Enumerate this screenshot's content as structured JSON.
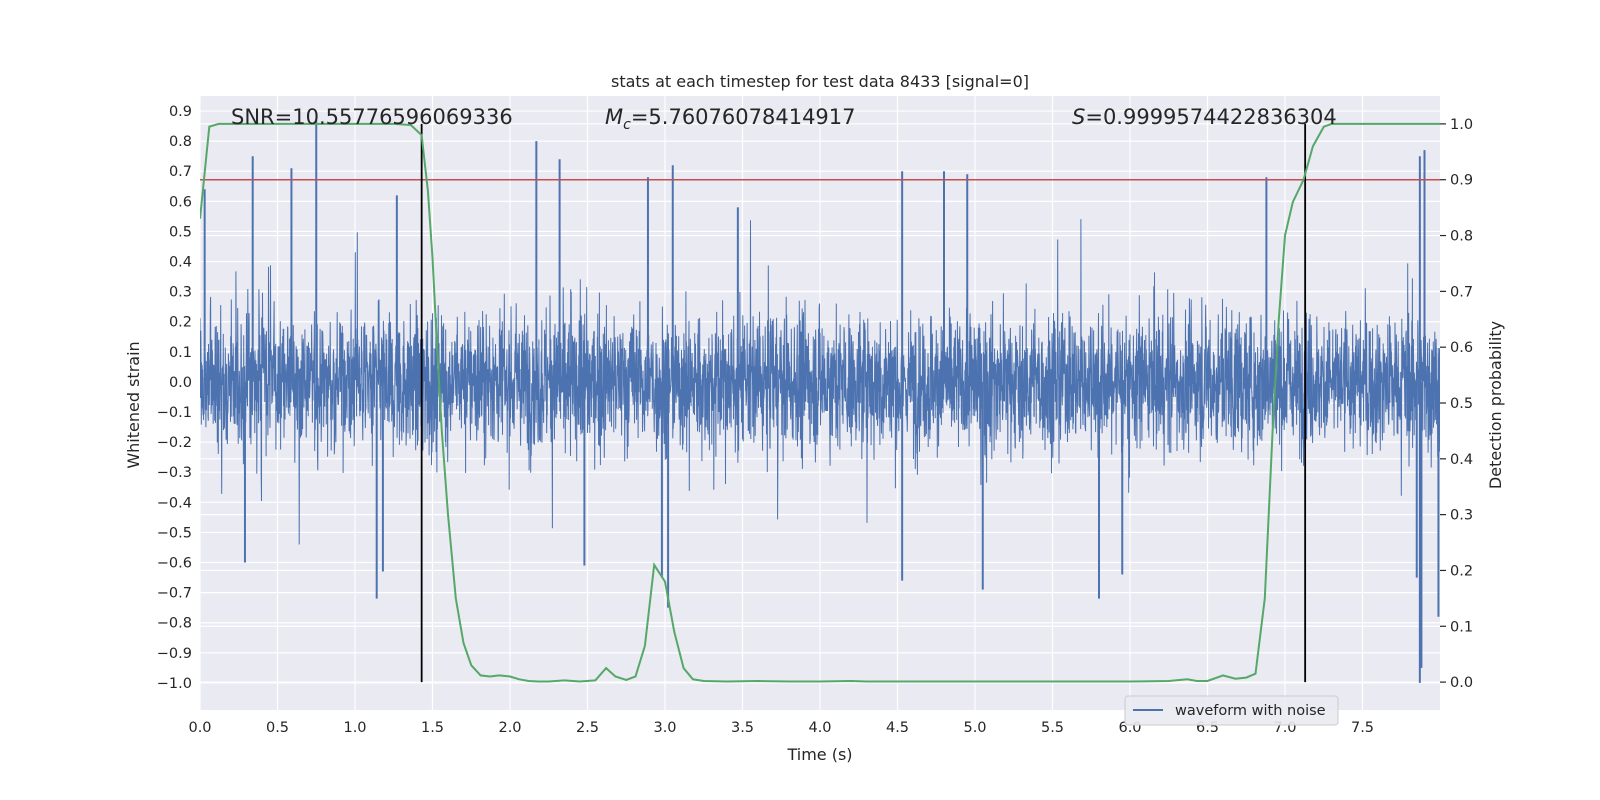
{
  "chart_data": {
    "type": "line",
    "title": "stats at each timestep for test data 8433 [signal=0]",
    "xlabel": "Time (s)",
    "ylabel": "Whitened strain",
    "y2label": "Detection probability",
    "xlim": [
      0.0,
      8.0
    ],
    "ylim": [
      -1.09,
      0.95
    ],
    "y2lim": [
      -0.05,
      1.05
    ],
    "xticks": [
      0.0,
      0.5,
      1.0,
      1.5,
      2.0,
      2.5,
      3.0,
      3.5,
      4.0,
      4.5,
      5.0,
      5.5,
      6.0,
      6.5,
      7.0,
      7.5
    ],
    "yticks": [
      0.9,
      0.8,
      0.7,
      0.6,
      0.5,
      0.4,
      0.3,
      0.2,
      0.1,
      0.0,
      -0.1,
      -0.2,
      -0.3,
      -0.4,
      -0.5,
      -0.6,
      -0.7,
      -0.8,
      -0.9,
      -1.0
    ],
    "y2ticks": [
      1.0,
      0.9,
      0.8,
      0.7,
      0.6,
      0.5,
      0.4,
      0.3,
      0.2,
      0.1,
      0.0
    ],
    "grid": true,
    "legend": {
      "placement": "lower-right",
      "entries": [
        "waveform with noise"
      ]
    },
    "annotations": {
      "snr": "SNR=10.55776596069336",
      "mc_symbol": "M",
      "mc_sub": "c",
      "mc_value": "=5.76076078414917",
      "s_symbol": "S",
      "s_value": "=0.9999574422836304"
    },
    "threshold_line": {
      "axis": "y2",
      "value": 0.9,
      "color": "#c44e52"
    },
    "vertical_lines": {
      "x": [
        1.43,
        7.13
      ],
      "color": "#000000"
    },
    "waveform": {
      "name": "waveform with noise",
      "color": "#4c72b0",
      "x_range": [
        0.0,
        8.0
      ],
      "sample_rate": 2048,
      "typical_envelope": [
        -0.42,
        0.45
      ],
      "spikes": [
        {
          "x": 0.03,
          "y": 0.64
        },
        {
          "x": 0.75,
          "y": 0.87
        },
        {
          "x": 0.34,
          "y": 0.75
        },
        {
          "x": 0.59,
          "y": 0.71
        },
        {
          "x": 2.17,
          "y": 0.8
        },
        {
          "x": 2.32,
          "y": 0.74
        },
        {
          "x": 2.89,
          "y": 0.68
        },
        {
          "x": 3.05,
          "y": 0.72
        },
        {
          "x": 4.53,
          "y": 0.7
        },
        {
          "x": 4.8,
          "y": 0.7
        },
        {
          "x": 4.95,
          "y": 0.69
        },
        {
          "x": 6.88,
          "y": 0.68
        },
        {
          "x": 7.9,
          "y": 0.77
        },
        {
          "x": 7.87,
          "y": 0.75
        },
        {
          "x": 3.47,
          "y": 0.58
        },
        {
          "x": 1.27,
          "y": 0.62
        },
        {
          "x": 1.14,
          "y": -0.72
        },
        {
          "x": 1.18,
          "y": -0.63
        },
        {
          "x": 3.02,
          "y": -0.75
        },
        {
          "x": 2.98,
          "y": -0.65
        },
        {
          "x": 4.53,
          "y": -0.66
        },
        {
          "x": 5.05,
          "y": -0.69
        },
        {
          "x": 5.8,
          "y": -0.72
        },
        {
          "x": 5.95,
          "y": -0.64
        },
        {
          "x": 7.87,
          "y": -1.0
        },
        {
          "x": 7.88,
          "y": -0.95
        },
        {
          "x": 7.85,
          "y": -0.65
        },
        {
          "x": 7.99,
          "y": -0.78
        },
        {
          "x": 0.29,
          "y": -0.6
        },
        {
          "x": 2.48,
          "y": -0.61
        }
      ]
    },
    "probability": {
      "color": "#55a868",
      "x": [
        0.0,
        0.06,
        0.12,
        0.25,
        0.5,
        0.75,
        1.0,
        1.25,
        1.36,
        1.43,
        1.47,
        1.5,
        1.53,
        1.56,
        1.6,
        1.65,
        1.7,
        1.75,
        1.81,
        1.87,
        1.93,
        2.0,
        2.06,
        2.12,
        2.18,
        2.25,
        2.35,
        2.45,
        2.55,
        2.62,
        2.68,
        2.75,
        2.81,
        2.87,
        2.93,
        3.0,
        3.06,
        3.12,
        3.18,
        3.25,
        3.4,
        3.6,
        3.8,
        4.0,
        4.2,
        4.3,
        4.4,
        4.6,
        5.0,
        5.5,
        6.0,
        6.25,
        6.37,
        6.43,
        6.5,
        6.6,
        6.68,
        6.75,
        6.81,
        6.87,
        6.92,
        6.96,
        7.0,
        7.05,
        7.12,
        7.18,
        7.25,
        7.3,
        7.5,
        7.75,
        8.0
      ],
      "y": [
        0.83,
        0.995,
        1.0,
        1.0,
        1.0,
        1.0,
        1.0,
        1.0,
        0.998,
        0.98,
        0.88,
        0.76,
        0.6,
        0.45,
        0.3,
        0.15,
        0.07,
        0.03,
        0.012,
        0.01,
        0.012,
        0.01,
        0.005,
        0.002,
        0.001,
        0.001,
        0.003,
        0.001,
        0.003,
        0.025,
        0.01,
        0.004,
        0.01,
        0.065,
        0.21,
        0.18,
        0.09,
        0.025,
        0.005,
        0.002,
        0.001,
        0.002,
        0.001,
        0.001,
        0.002,
        0.001,
        0.001,
        0.001,
        0.001,
        0.001,
        0.001,
        0.002,
        0.005,
        0.002,
        0.002,
        0.012,
        0.006,
        0.008,
        0.015,
        0.15,
        0.45,
        0.65,
        0.8,
        0.86,
        0.9,
        0.96,
        0.995,
        1.0,
        1.0,
        1.0,
        1.0
      ]
    }
  }
}
